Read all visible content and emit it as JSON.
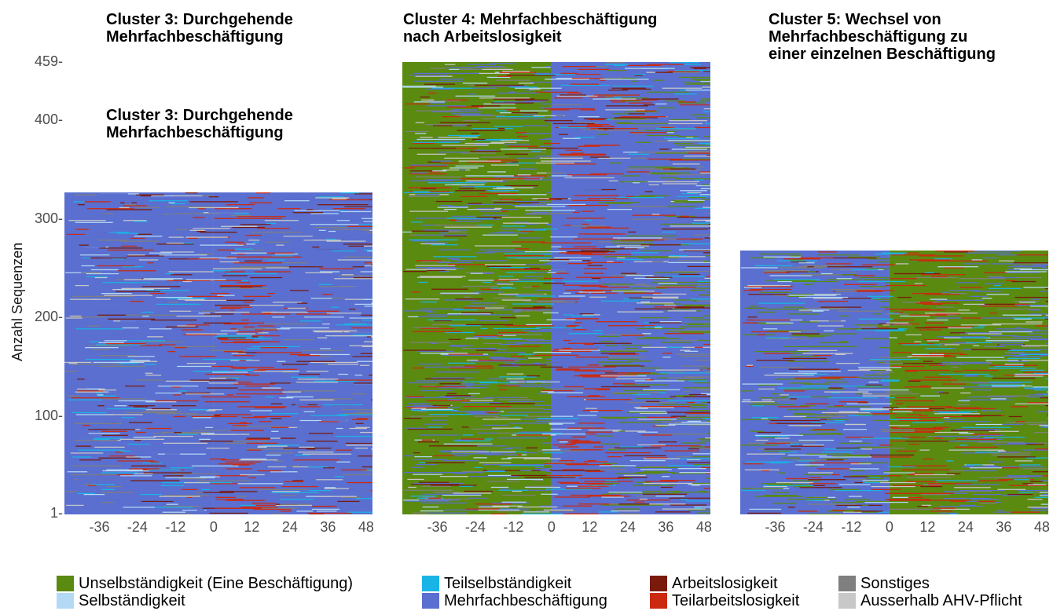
{
  "chart_data": {
    "type": "heatmap",
    "ylabel": "Anzahl Sequenzen",
    "y_ticks": [
      "1",
      "100",
      "200",
      "300",
      "400",
      "459"
    ],
    "x_ticks": [
      "-36",
      "-24",
      "-12",
      "0",
      "12",
      "24",
      "36",
      "48"
    ],
    "x_range": [
      -47,
      50
    ],
    "states": [
      {
        "name": "Unselbständigkeit (Eine Beschäftigung)",
        "color": "#5a8a10"
      },
      {
        "name": "Teilselbständigkeit",
        "color": "#19b4e6"
      },
      {
        "name": "Arbeitslosigkeit",
        "color": "#7a1a0c"
      },
      {
        "name": "Sonstiges",
        "color": "#7f7f7f"
      },
      {
        "name": "Selbständigkeit",
        "color": "#b3d9f5"
      },
      {
        "name": "Mehrfachbeschäftigung",
        "color": "#5a6fcf"
      },
      {
        "name": "Teilarbeitslosigkeit",
        "color": "#cc2a10"
      },
      {
        "name": "Ausserhalb AHV-Pflicht",
        "color": "#c8c8c8"
      }
    ],
    "panels": [
      {
        "title": "Cluster 3: Durchgehende\nMehrfachbeschäftigung",
        "n_sequences": 327,
        "before": "Mehrfachbeschäftigung",
        "after": "Mehrfachbeschäftigung"
      },
      {
        "title": "Cluster 4: Mehrfachbeschäftigung\nnach Arbeitslosigkeit",
        "n_sequences": 459,
        "before": "Unselbständigkeit (Eine Beschäftigung)",
        "after": "Mehrfachbeschäftigung"
      },
      {
        "title": "Cluster 5: Wechsel von\nMehrfachbeschäftigung zu\neiner einzelnen Beschäftigung",
        "n_sequences": 268,
        "before": "Mehrfachbeschäftigung",
        "after": "Unselbständigkeit (Eine Beschäftigung)"
      }
    ]
  },
  "extra_title": "Cluster 3: Durchgehende\nMehrfachbeschäftigung",
  "legend": [
    {
      "label": "Unselbständigkeit (Eine Beschäftigung)",
      "color": "#5a8a10"
    },
    {
      "label": "Teilselbständigkeit",
      "color": "#19b4e6"
    },
    {
      "label": "Arbeitslosigkeit",
      "color": "#7a1a0c"
    },
    {
      "label": "Sonstiges",
      "color": "#7f7f7f"
    },
    {
      "label": "Selbständigkeit",
      "color": "#b3d9f5"
    },
    {
      "label": "Mehrfachbeschäftigung",
      "color": "#5a6fcf"
    },
    {
      "label": "Teilarbeitslosigkeit",
      "color": "#cc2a10"
    },
    {
      "label": "Ausserhalb AHV-Pflicht",
      "color": "#c8c8c8"
    }
  ]
}
